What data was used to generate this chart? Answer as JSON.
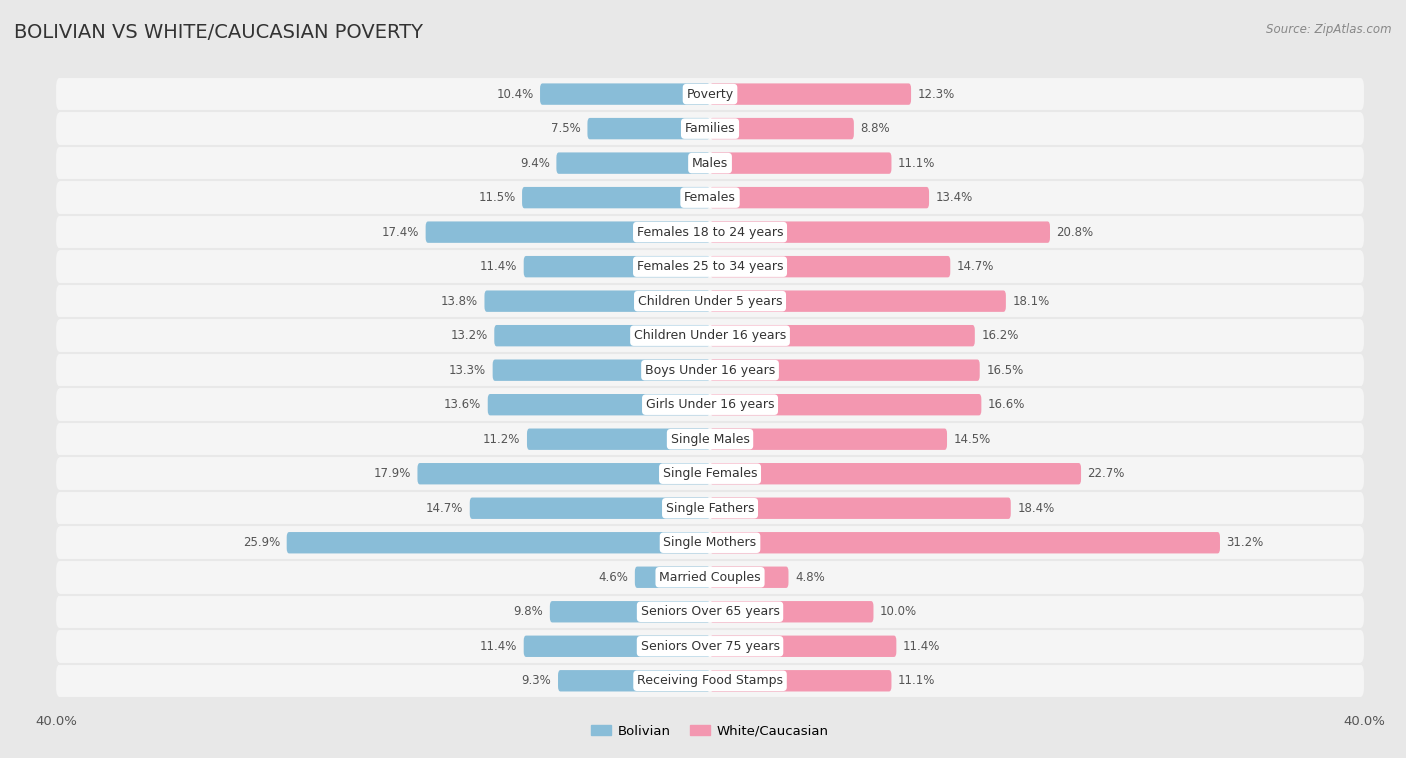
{
  "title": "BOLIVIAN VS WHITE/CAUCASIAN POVERTY",
  "source": "Source: ZipAtlas.com",
  "categories": [
    "Poverty",
    "Families",
    "Males",
    "Females",
    "Females 18 to 24 years",
    "Females 25 to 34 years",
    "Children Under 5 years",
    "Children Under 16 years",
    "Boys Under 16 years",
    "Girls Under 16 years",
    "Single Males",
    "Single Females",
    "Single Fathers",
    "Single Mothers",
    "Married Couples",
    "Seniors Over 65 years",
    "Seniors Over 75 years",
    "Receiving Food Stamps"
  ],
  "bolivian": [
    10.4,
    7.5,
    9.4,
    11.5,
    17.4,
    11.4,
    13.8,
    13.2,
    13.3,
    13.6,
    11.2,
    17.9,
    14.7,
    25.9,
    4.6,
    9.8,
    11.4,
    9.3
  ],
  "white": [
    12.3,
    8.8,
    11.1,
    13.4,
    20.8,
    14.7,
    18.1,
    16.2,
    16.5,
    16.6,
    14.5,
    22.7,
    18.4,
    31.2,
    4.8,
    10.0,
    11.4,
    11.1
  ],
  "bolivian_color": "#89bdd8",
  "white_color": "#f397b0",
  "axis_limit": 40.0,
  "background_color": "#e8e8e8",
  "bar_background": "#f5f5f5",
  "bar_height": 0.62,
  "title_fontsize": 14,
  "label_fontsize": 9,
  "tick_fontsize": 9.5,
  "value_fontsize": 8.5
}
